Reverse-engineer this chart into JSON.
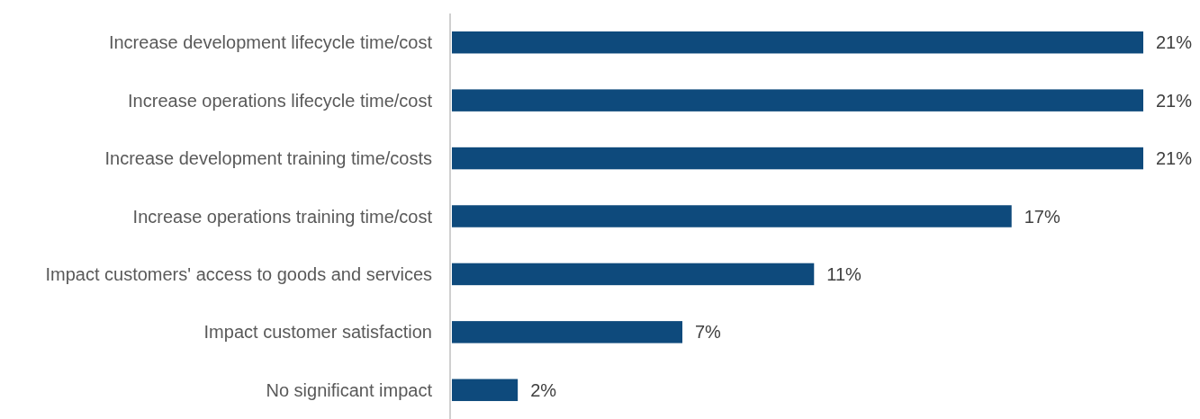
{
  "chart_data": {
    "type": "bar",
    "orientation": "horizontal",
    "categories": [
      "Increase development lifecycle time/cost",
      "Increase operations lifecycle time/cost",
      "Increase development training time/costs",
      "Increase operations training time/cost",
      "Impact customers' access to goods and services",
      "Impact customer satisfaction",
      "No significant impact"
    ],
    "values": [
      21,
      21,
      21,
      17,
      11,
      7,
      2
    ],
    "value_labels": [
      "21%",
      "21%",
      "21%",
      "17%",
      "11%",
      "7%",
      "2%"
    ],
    "color": "#0e4a7c"
  }
}
